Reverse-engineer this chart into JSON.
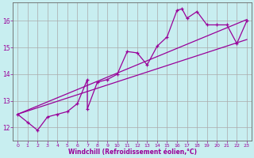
{
  "xlabel": "Windchill (Refroidissement éolien,°C)",
  "background_color": "#c8eef0",
  "line_color": "#990099",
  "grid_color": "#aaaaaa",
  "ylim": [
    11.5,
    16.7
  ],
  "xlim": [
    -0.5,
    23.5
  ],
  "yticks": [
    12,
    13,
    14,
    15,
    16
  ],
  "xticks": [
    0,
    1,
    2,
    3,
    4,
    5,
    6,
    7,
    8,
    9,
    10,
    11,
    12,
    13,
    14,
    15,
    16,
    17,
    18,
    19,
    20,
    21,
    22,
    23
  ],
  "series": [
    [
      0,
      12.5
    ],
    [
      1,
      12.2
    ],
    [
      2,
      11.9
    ],
    [
      3,
      12.4
    ],
    [
      4,
      12.5
    ],
    [
      5,
      12.6
    ],
    [
      6,
      12.9
    ],
    [
      7,
      13.8
    ],
    [
      7,
      12.7
    ],
    [
      8,
      13.7
    ],
    [
      9,
      13.8
    ],
    [
      10,
      14.0
    ],
    [
      11,
      14.85
    ],
    [
      12,
      14.8
    ],
    [
      13,
      14.35
    ],
    [
      14,
      15.05
    ],
    [
      15,
      15.4
    ],
    [
      16,
      16.4
    ],
    [
      16.5,
      16.45
    ],
    [
      17,
      16.1
    ],
    [
      18,
      16.35
    ],
    [
      19,
      15.85
    ],
    [
      20,
      15.85
    ],
    [
      21,
      15.85
    ],
    [
      22,
      15.15
    ],
    [
      23,
      16.0
    ]
  ],
  "line1": [
    [
      0,
      12.5
    ],
    [
      23,
      16.05
    ]
  ],
  "line2": [
    [
      0,
      12.5
    ],
    [
      23,
      15.3
    ]
  ]
}
